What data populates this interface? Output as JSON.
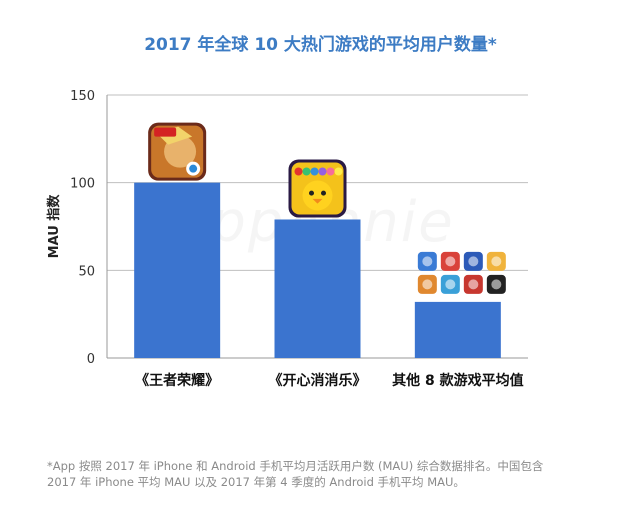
{
  "title": "2017 年全球 10 大热门游戏的平均用户数量*",
  "footnote": {
    "line1": "*App 按照 2017 年 iPhone 和 Android 手机平均月活跃用户数 (MAU) 综合数据排名。中国包含",
    "line2": "2017 年 iPhone 平均 MAU 以及 2017 年第 4 季度的 Android 手机平均 MAU。"
  },
  "watermark": "AppAnnie",
  "colors": {
    "bar": "#3b74cf",
    "title": "#3d7cc4"
  },
  "chart_data": {
    "type": "bar",
    "categories": [
      "《王者荣耀》",
      "《开心消消乐》",
      "其他 8 款游戏平均值"
    ],
    "values": [
      100,
      79,
      32
    ],
    "ylabel": "MAU 指数",
    "xlabel": "",
    "ylim": [
      0,
      150
    ],
    "yticks": [
      0,
      50,
      100,
      150
    ],
    "grid": true,
    "icons": [
      "honor-of-kings-app-icon",
      "happy-elimination-app-icon",
      "other-games-app-icon-grid"
    ]
  }
}
